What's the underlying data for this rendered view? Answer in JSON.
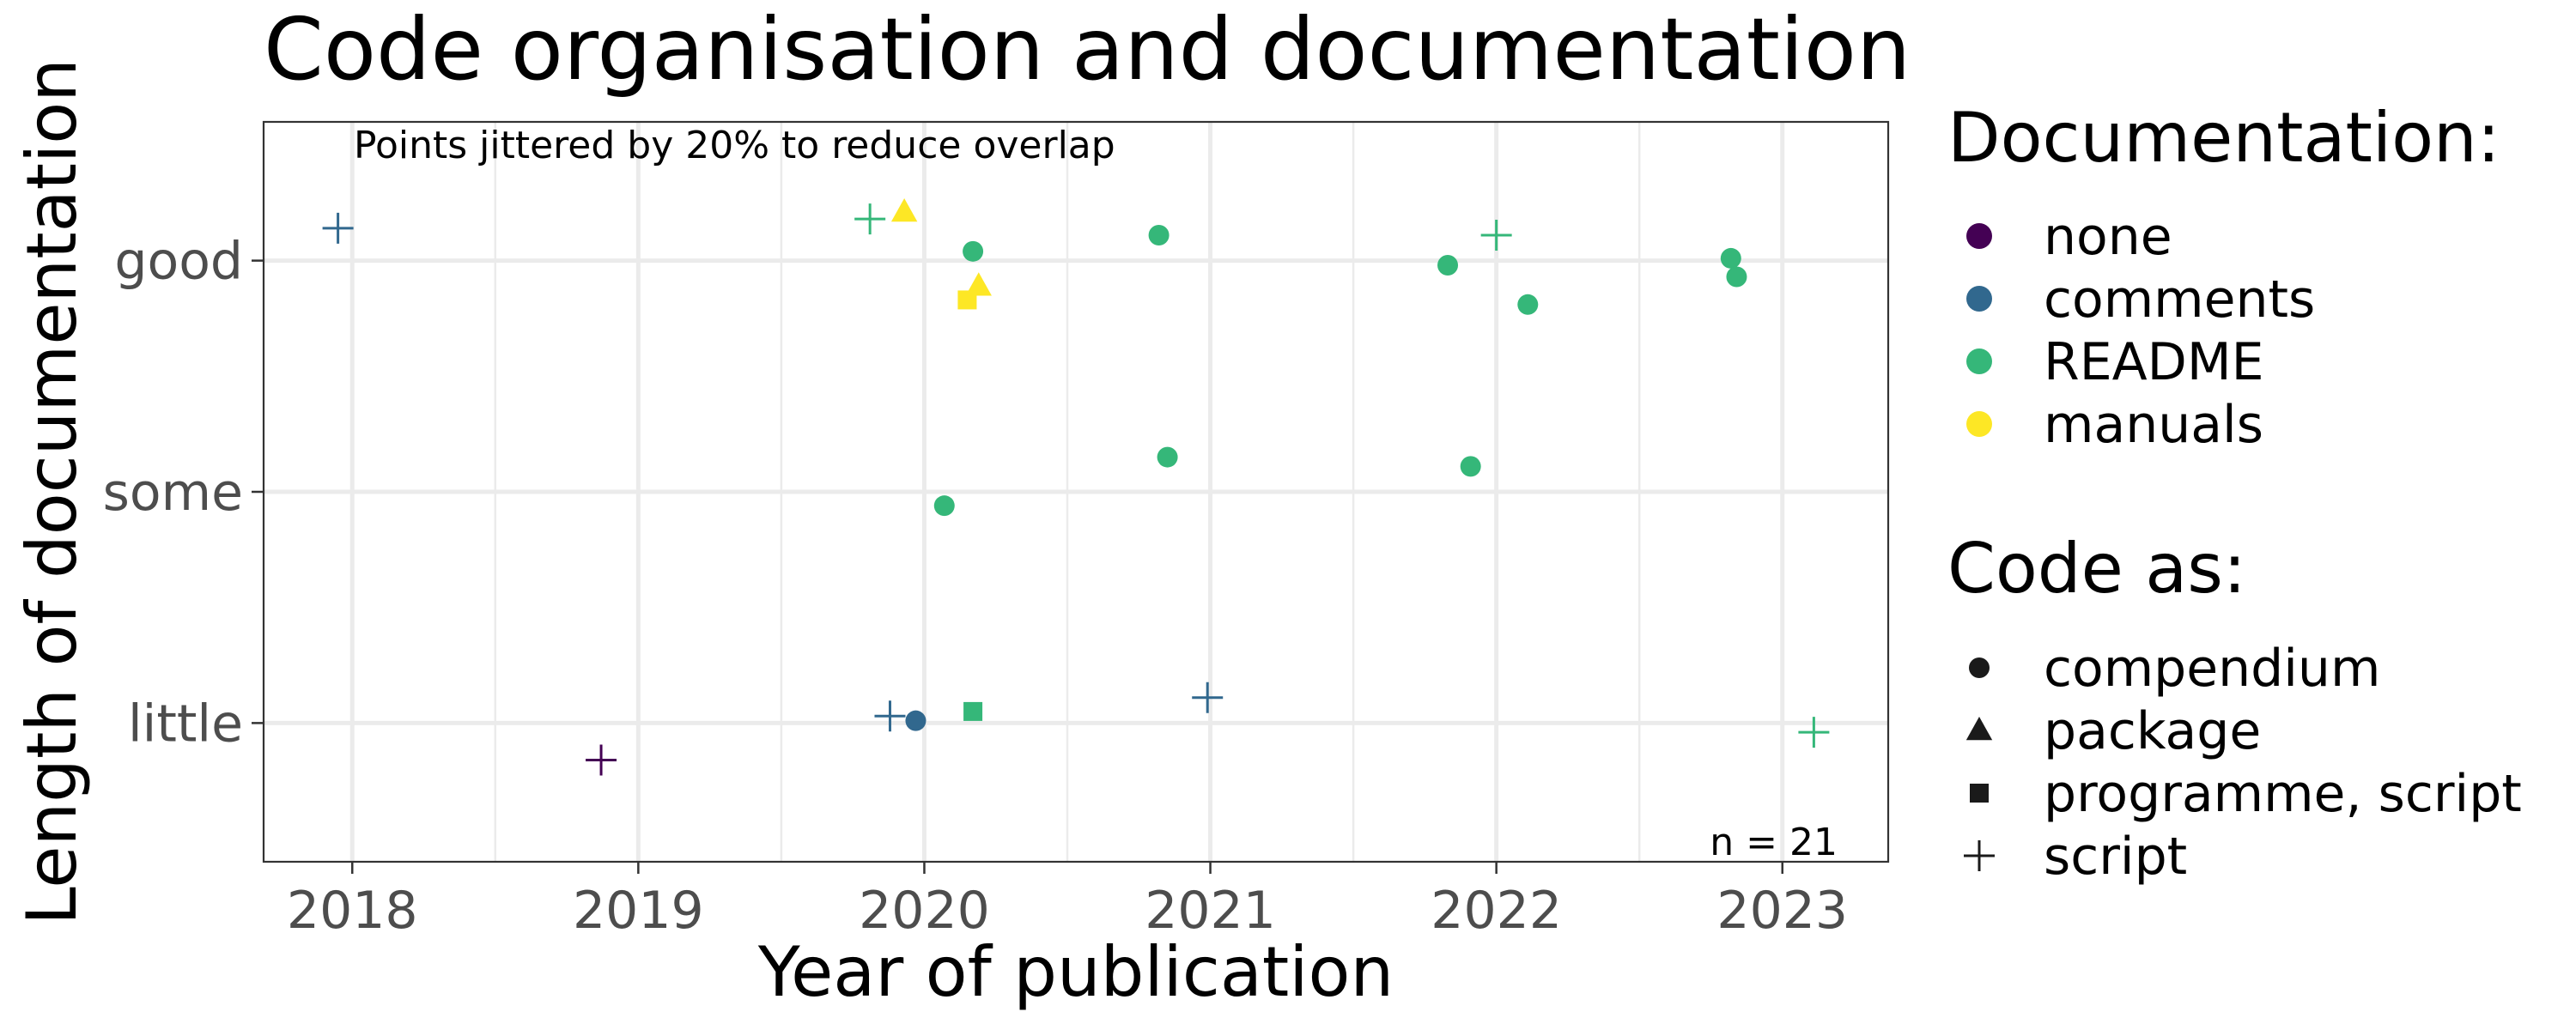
{
  "chart_data": {
    "type": "scatter",
    "title": "Code organisation and documentation",
    "xlabel": "Year of publication",
    "ylabel": "Length of documentation",
    "xlim": [
      2017.69,
      2023.37
    ],
    "ylim": [
      0.4,
      3.6
    ],
    "x_ticks": [
      2018,
      2019,
      2020,
      2021,
      2022,
      2023
    ],
    "y_categories": [
      "little",
      "some",
      "good"
    ],
    "grid": true,
    "legend_position": "right",
    "annotations": {
      "note": "Points jittered by 20% to reduce overlap",
      "count": "n = 21"
    },
    "color_legend": {
      "title": "Documentation:",
      "entries": [
        {
          "label": "none",
          "color": "#440154"
        },
        {
          "label": "comments",
          "color": "#31688e"
        },
        {
          "label": "README",
          "color": "#35b779"
        },
        {
          "label": "manuals",
          "color": "#fde725"
        }
      ]
    },
    "shape_legend": {
      "title": "Code as:",
      "entries": [
        {
          "label": "compendium",
          "shape": "circle"
        },
        {
          "label": "package",
          "shape": "triangle"
        },
        {
          "label": "programme, script",
          "shape": "square"
        },
        {
          "label": "script",
          "shape": "plus"
        }
      ]
    },
    "points": [
      {
        "x": 2017.95,
        "y": 3.14,
        "documentation": "comments",
        "code": "script"
      },
      {
        "x": 2019.81,
        "y": 3.18,
        "documentation": "README",
        "code": "script"
      },
      {
        "x": 2019.93,
        "y": 3.21,
        "documentation": "manuals",
        "code": "package"
      },
      {
        "x": 2020.17,
        "y": 3.04,
        "documentation": "README",
        "code": "compendium"
      },
      {
        "x": 2020.19,
        "y": 2.89,
        "documentation": "manuals",
        "code": "package"
      },
      {
        "x": 2020.15,
        "y": 2.83,
        "documentation": "manuals",
        "code": "programme, script"
      },
      {
        "x": 2020.82,
        "y": 3.11,
        "documentation": "README",
        "code": "compendium"
      },
      {
        "x": 2021.83,
        "y": 2.98,
        "documentation": "README",
        "code": "compendium"
      },
      {
        "x": 2022.0,
        "y": 3.11,
        "documentation": "README",
        "code": "script"
      },
      {
        "x": 2022.11,
        "y": 2.81,
        "documentation": "README",
        "code": "compendium"
      },
      {
        "x": 2022.82,
        "y": 3.01,
        "documentation": "README",
        "code": "compendium"
      },
      {
        "x": 2022.84,
        "y": 2.93,
        "documentation": "README",
        "code": "compendium"
      },
      {
        "x": 2020.07,
        "y": 1.94,
        "documentation": "README",
        "code": "compendium"
      },
      {
        "x": 2020.85,
        "y": 2.15,
        "documentation": "README",
        "code": "compendium"
      },
      {
        "x": 2021.91,
        "y": 2.11,
        "documentation": "README",
        "code": "compendium"
      },
      {
        "x": 2018.87,
        "y": 0.84,
        "documentation": "none",
        "code": "script"
      },
      {
        "x": 2019.88,
        "y": 1.03,
        "documentation": "comments",
        "code": "script"
      },
      {
        "x": 2019.97,
        "y": 1.01,
        "documentation": "comments",
        "code": "compendium"
      },
      {
        "x": 2020.17,
        "y": 1.05,
        "documentation": "README",
        "code": "programme, script"
      },
      {
        "x": 2020.99,
        "y": 1.11,
        "documentation": "comments",
        "code": "script"
      },
      {
        "x": 2023.11,
        "y": 0.96,
        "documentation": "README",
        "code": "script"
      }
    ]
  }
}
